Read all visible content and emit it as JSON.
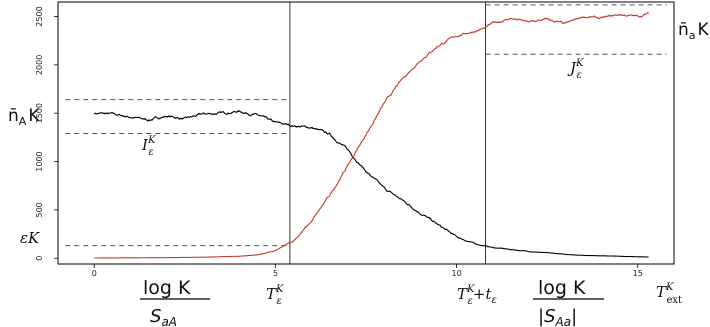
{
  "chart_data": {
    "type": "line",
    "xlim": [
      -1,
      16
    ],
    "ylim": [
      -60,
      2650
    ],
    "x_ticks": [
      0,
      5,
      10,
      15
    ],
    "y_ticks": [
      0,
      500,
      1000,
      1500,
      2000,
      2500
    ],
    "x_tick_labels": [
      "0",
      "5",
      "10",
      "15"
    ],
    "y_tick_labels": [
      "0",
      "500",
      "1000",
      "1500",
      "2000",
      "2500"
    ],
    "series": [
      {
        "name": "n̄_A K",
        "color": "#000000",
        "x": [
          0,
          0.5,
          1,
          1.5,
          2,
          2.5,
          3,
          3.5,
          4,
          4.5,
          5,
          5.5,
          6,
          6.5,
          7,
          7.5,
          8,
          8.5,
          9,
          9.5,
          10,
          10.5,
          11,
          11.5,
          12,
          12.5,
          13,
          13.5,
          14,
          14.5,
          15,
          15.3
        ],
        "y": [
          1500,
          1490,
          1460,
          1430,
          1470,
          1440,
          1490,
          1500,
          1520,
          1480,
          1400,
          1370,
          1350,
          1280,
          1120,
          900,
          720,
          600,
          470,
          340,
          220,
          150,
          110,
          90,
          70,
          55,
          40,
          30,
          25,
          20,
          15,
          12
        ]
      },
      {
        "name": "n̄_a K",
        "color": "#c0392b",
        "x": [
          0,
          1,
          2,
          3,
          4,
          4.5,
          5,
          5.5,
          6,
          6.5,
          7,
          7.5,
          8,
          8.5,
          9,
          9.5,
          10,
          10.5,
          10.8,
          11,
          11.5,
          12,
          12.5,
          13,
          13.5,
          14,
          14.5,
          15,
          15.3
        ],
        "y": [
          2,
          4,
          6,
          10,
          20,
          35,
          75,
          180,
          380,
          650,
          960,
          1280,
          1600,
          1850,
          2050,
          2200,
          2300,
          2350,
          2380,
          2430,
          2480,
          2440,
          2470,
          2420,
          2500,
          2480,
          2520,
          2500,
          2530
        ]
      }
    ],
    "reference_lines": {
      "vertical_x": [
        5.4,
        10.8
      ],
      "horizontal_segments": [
        {
          "y": 1640,
          "x_from": -0.8,
          "x_to": 5.4
        },
        {
          "y": 1290,
          "x_from": -0.8,
          "x_to": 5.4
        },
        {
          "y": 130,
          "x_from": -0.8,
          "x_to": 5.4
        },
        {
          "y": 2620,
          "x_from": 10.8,
          "x_to": 15.8
        },
        {
          "y": 2110,
          "x_from": 10.8,
          "x_to": 15.8
        }
      ]
    },
    "labels": {
      "left_axis_label": "n̄",
      "left_axis_sub": "A",
      "left_axis_suffix": "K",
      "right_axis_label": "n̄",
      "right_axis_sub": "a",
      "right_axis_suffix": "K",
      "eps_K": "εK",
      "I_label": "I",
      "I_sup": "K",
      "I_sub": "ε",
      "J_label": "J",
      "J_sup": "K",
      "J_sub": "ε",
      "bottom_log1_top": "log K",
      "bottom_log1_bot": "S",
      "bottom_log1_bot_sub": "aA",
      "bottom_T_eps": "T",
      "bottom_T_eps_sup": "K",
      "bottom_T_eps_sub": "ε",
      "bottom_T_eps_t": "T",
      "bottom_T_eps_t_sup": "K",
      "bottom_T_eps_t_sub": "ε",
      "bottom_T_eps_t_plus": "+t",
      "bottom_T_eps_t_plus_sub": "ε",
      "bottom_log2_top": "log K",
      "bottom_log2_bot": "|S",
      "bottom_log2_bot_sub": "Aa",
      "bottom_log2_bot_end": "|",
      "bottom_T_ext": "T",
      "bottom_T_ext_sup": "K",
      "bottom_T_ext_sub": "ext"
    }
  }
}
